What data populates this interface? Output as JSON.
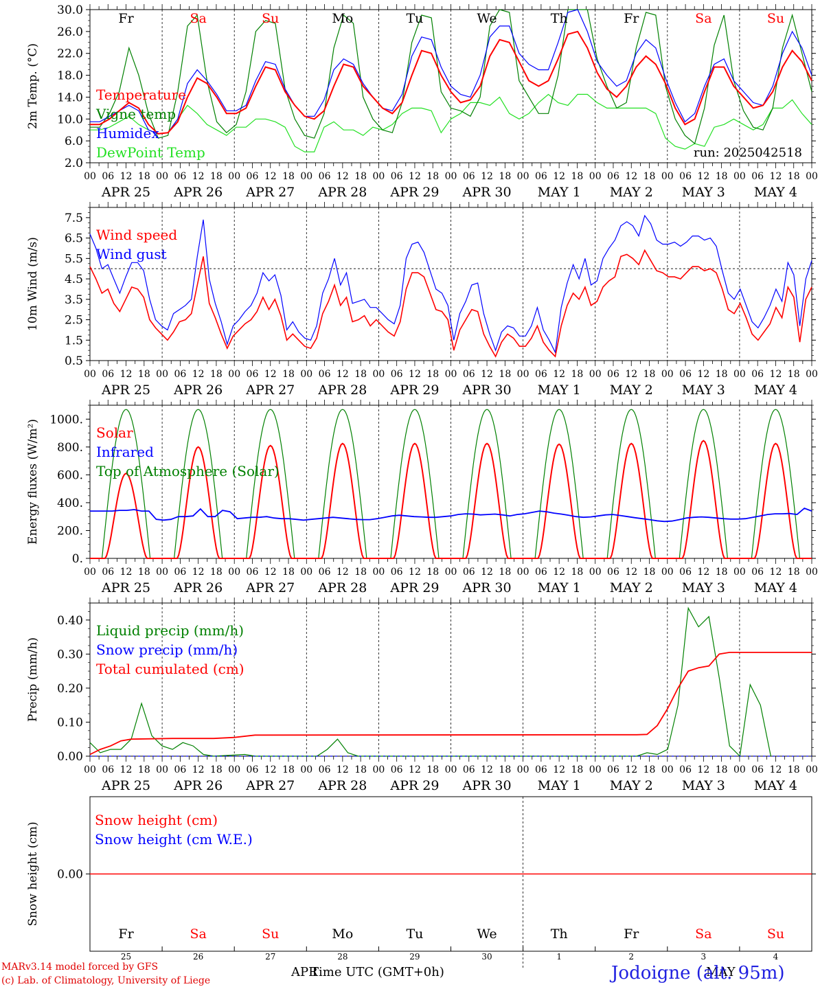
{
  "days": {
    "abbr": [
      "Fr",
      "Sa",
      "Su",
      "Mo",
      "Tu",
      "We",
      "Th",
      "Fr",
      "Sa",
      "Su"
    ],
    "weekend": [
      false,
      true,
      true,
      false,
      false,
      false,
      false,
      false,
      true,
      true
    ],
    "labels": [
      "APR 25",
      "APR 26",
      "APR 27",
      "APR 28",
      "APR 29",
      "APR 30",
      "MAY  1",
      "MAY  2",
      "MAY  3",
      "MAY  4"
    ],
    "daynums": [
      "25",
      "26",
      "27",
      "28",
      "29",
      "30",
      "1",
      "2",
      "3",
      "4"
    ],
    "hours": [
      "00",
      "06",
      "12",
      "18"
    ],
    "end_hour": "00"
  },
  "colors": {
    "red": "#ff0000",
    "green": "#008000",
    "blue": "#0000ff",
    "lightgreen": "#22e022",
    "axis": "#000000"
  },
  "footer": {
    "model": "MARv3.14 model forced by GFS",
    "lab": "(c) Lab. of Climatology, University of Liege",
    "apr": "APR",
    "may": "MAY",
    "xlabel": "Time UTC (GMT+0h)",
    "station": "Jodoigne (alt. 95m)"
  },
  "chart_data": [
    {
      "type": "line",
      "id": "temp",
      "ylabel": "2m Temp. (°C)",
      "ylim": [
        2,
        30
      ],
      "yticks": [
        2.0,
        6.0,
        10.0,
        14.0,
        18.0,
        22.0,
        26.0,
        30.0
      ],
      "ytick_labels": [
        "2.0",
        "6.0",
        "10.0",
        "14.0",
        "18.0",
        "22.0",
        "26.0",
        "30.0"
      ],
      "run_label": "run: 2025042518",
      "legend": [
        "Temperature",
        "Vigne temp",
        "Humidex",
        "DewPoint Temp"
      ],
      "x_hours_step": 6,
      "series": [
        {
          "name": "Temperature",
          "color": "red",
          "values": [
            9,
            9,
            10,
            11.5,
            13,
            12,
            9,
            7.3,
            7.5,
            9.5,
            14,
            17.5,
            16.5,
            14,
            11,
            11,
            12,
            16,
            19.5,
            19,
            15,
            12.5,
            10.5,
            10,
            11.5,
            16,
            20,
            19.5,
            16,
            14,
            12,
            11,
            13,
            18,
            22.5,
            22,
            18,
            15,
            13,
            13.5,
            16,
            21.5,
            24.5,
            24,
            20.5,
            17,
            16,
            17,
            21,
            25.5,
            26,
            23,
            18.5,
            15.5,
            14,
            16,
            19.5,
            21.5,
            20,
            16.5,
            12,
            9,
            10,
            15,
            19.5,
            19.5,
            16,
            14,
            12,
            12.5,
            15,
            19.5,
            22.5,
            20.5,
            17
          ]
        },
        {
          "name": "Vigne temp",
          "color": "green",
          "values": [
            8.5,
            8.5,
            11,
            15,
            23,
            18,
            11,
            6.5,
            7,
            15,
            27,
            29,
            17,
            9.5,
            7.5,
            9,
            15,
            26,
            28,
            27.5,
            15.5,
            10,
            7,
            6.5,
            11,
            23,
            29,
            27.5,
            14,
            10,
            8,
            7.5,
            13,
            24,
            29,
            28.5,
            15,
            12,
            11.5,
            10.5,
            14,
            27,
            30,
            29.5,
            17,
            14,
            11,
            11,
            18,
            30,
            30,
            30,
            21,
            16,
            12,
            13,
            23,
            29.5,
            29,
            16,
            10,
            7,
            5.5,
            12,
            23.5,
            29,
            17,
            11.5,
            8.5,
            8,
            12,
            23,
            29,
            22,
            15
          ]
        },
        {
          "name": "Humidex",
          "color": "blue",
          "values": [
            9.5,
            9.5,
            10.5,
            11.5,
            12.5,
            11.5,
            8,
            7.3,
            7.5,
            10,
            16.5,
            19,
            17,
            14.5,
            11.5,
            11.5,
            12.5,
            17,
            20.5,
            20,
            15.5,
            12.5,
            10.5,
            10.5,
            13.5,
            19,
            21,
            20,
            16.5,
            14,
            12,
            11.5,
            14.5,
            21.5,
            25,
            24.5,
            19.5,
            16,
            14.5,
            14,
            18,
            25,
            27,
            27,
            22,
            20,
            19,
            19,
            24,
            29.5,
            30,
            26,
            20.5,
            18,
            16,
            17,
            22,
            24.5,
            23,
            17.5,
            13,
            9.5,
            11,
            16,
            20,
            21,
            17,
            15,
            13,
            12.5,
            16,
            22,
            26,
            23,
            18
          ]
        },
        {
          "name": "DewPoint Temp",
          "color": "lightgreen",
          "values": [
            8,
            8,
            8.5,
            9.5,
            10.5,
            9,
            8,
            7.3,
            7.5,
            10,
            12.5,
            11,
            9,
            8,
            7,
            8.5,
            8.5,
            10,
            10,
            9.5,
            8.5,
            5,
            4,
            4,
            8.5,
            9.5,
            8,
            8,
            7,
            8.5,
            8,
            9,
            11,
            12,
            12,
            11.5,
            7.5,
            10,
            11,
            13,
            13,
            12.5,
            14,
            11,
            10,
            11,
            13,
            14.5,
            13,
            12.5,
            14.5,
            14.5,
            13,
            12,
            12,
            12,
            12,
            12,
            11,
            6.5,
            5,
            4.5,
            5.5,
            5,
            8.5,
            9,
            10,
            9,
            8,
            9,
            12,
            12,
            13.5,
            11,
            9
          ]
        }
      ]
    },
    {
      "type": "line",
      "id": "wind",
      "ylabel": "10m Wind (m/s)",
      "ylim": [
        0.5,
        8
      ],
      "yticks": [
        0.5,
        1.5,
        2.5,
        3.5,
        4.5,
        5.5,
        6.5,
        7.5
      ],
      "ytick_labels": [
        "0.5",
        "1.5",
        "2.5",
        "3.5",
        "4.5",
        "5.5",
        "6.5",
        "7.5"
      ],
      "hline": 5,
      "legend": [
        "Wind speed",
        "Wind gust"
      ],
      "x_hours_step": 3,
      "series": [
        {
          "name": "Wind speed",
          "color": "red",
          "values": [
            5.1,
            4.5,
            3.8,
            4,
            3.3,
            2.9,
            3.5,
            4.1,
            4,
            3.6,
            2.5,
            2.1,
            1.8,
            1.5,
            1.9,
            2.4,
            2.5,
            2.8,
            4.2,
            5.6,
            3.3,
            2.6,
            1.8,
            1.1,
            1.7,
            2,
            2.3,
            2.5,
            2.9,
            3.6,
            3,
            3.5,
            2.7,
            1.5,
            1.8,
            1.5,
            1.2,
            1.1,
            1.6,
            2.8,
            3.4,
            4.2,
            3.2,
            3.6,
            2.4,
            2.5,
            2.7,
            2.2,
            2.5,
            2.2,
            1.9,
            1.7,
            2.4,
            4,
            4.8,
            4.8,
            4.6,
            3.8,
            3,
            2.9,
            2.5,
            1,
            2,
            2.5,
            3,
            2.9,
            1.8,
            1.2,
            0.7,
            1.4,
            1.8,
            1.6,
            1.2,
            1.2,
            1.6,
            2.2,
            1.4,
            1,
            0.7,
            2.2,
            3.2,
            3.8,
            3.5,
            4.1,
            3.2,
            3.4,
            4.1,
            4.4,
            4.6,
            5.6,
            5.7,
            5.5,
            5.2,
            5.9,
            5.4,
            4.9,
            4.8,
            4.6,
            4.6,
            4.5,
            4.8,
            5.1,
            5.1,
            4.9,
            5,
            4.8,
            4,
            3,
            2.8,
            3.3,
            2.6,
            1.8,
            1.5,
            1.9,
            2.3,
            3.1,
            2.6,
            4.1,
            3.6,
            1.4,
            3.5,
            4.1
          ]
        },
        {
          "name": "Wind gust",
          "color": "blue",
          "values": [
            6.7,
            6,
            5,
            5.2,
            4.5,
            3.8,
            4.6,
            5.3,
            5.3,
            4.9,
            3.5,
            2.5,
            2.2,
            2,
            2.8,
            3,
            3.2,
            3.5,
            5.6,
            7.4,
            4.5,
            3.3,
            2.4,
            1.3,
            2.2,
            2.5,
            2.9,
            3.2,
            3.8,
            4.8,
            4.4,
            4.7,
            3.7,
            2,
            2.4,
            1.9,
            1.6,
            1.5,
            2.2,
            3.8,
            4.5,
            5.5,
            4.2,
            4.8,
            3.3,
            3.4,
            3.5,
            3.1,
            3.1,
            2.8,
            2.5,
            2.3,
            3.2,
            5.5,
            6.2,
            6.3,
            5.8,
            4.9,
            4,
            3.8,
            3.2,
            1.5,
            2.8,
            3.4,
            4.2,
            4.3,
            2.8,
            1.8,
            1,
            1.9,
            2.2,
            2.1,
            1.7,
            1.7,
            2.2,
            3.1,
            2,
            1.5,
            0.9,
            3.1,
            4.3,
            5.2,
            4.5,
            5.5,
            4.2,
            4.4,
            5.5,
            6,
            6.4,
            7.1,
            7.3,
            7.1,
            6.6,
            7.6,
            7.2,
            6.4,
            6.2,
            6.2,
            6.3,
            6.1,
            6.3,
            6.6,
            6.6,
            6.4,
            6.5,
            6.1,
            4.9,
            3.8,
            3.5,
            4,
            3.2,
            2.4,
            2.1,
            2.6,
            3.2,
            4,
            3.4,
            5.3,
            4.7,
            2.2,
            4.5,
            5.4
          ]
        }
      ]
    },
    {
      "type": "line",
      "id": "energy",
      "ylabel": "Energy fluxes (W/m²)",
      "ylim": [
        0,
        1100
      ],
      "yticks": [
        0,
        200,
        400,
        600,
        800,
        1000
      ],
      "ytick_labels": [
        "0.",
        "200.",
        "400.",
        "600.",
        "800.",
        "1000."
      ],
      "legend": [
        "Solar",
        "Infrared",
        "Top of Atmosphere (Solar)"
      ],
      "x_hours_step": 3,
      "solar_peaks": [
        610,
        800,
        810,
        825,
        825,
        825,
        820,
        825,
        845,
        825
      ],
      "toa_peak": 1070,
      "infrared": [
        340,
        340,
        340,
        340,
        345,
        345,
        350,
        340,
        340,
        280,
        275,
        280,
        300,
        300,
        305,
        355,
        300,
        300,
        345,
        335,
        285,
        290,
        295,
        295,
        300,
        290,
        285,
        285,
        280,
        275,
        280,
        285,
        290,
        295,
        290,
        285,
        280,
        278,
        278,
        285,
        295,
        305,
        310,
        305,
        300,
        298,
        295,
        295,
        300,
        305,
        315,
        320,
        318,
        312,
        315,
        318,
        312,
        305,
        315,
        320,
        330,
        340,
        335,
        325,
        318,
        310,
        300,
        295,
        298,
        305,
        312,
        315,
        308,
        300,
        292,
        285,
        278,
        270,
        265,
        268,
        278,
        290,
        295,
        298,
        295,
        290,
        285,
        282,
        282,
        285,
        295,
        305,
        315,
        320,
        320,
        322,
        315,
        360,
        340
      ]
    },
    {
      "type": "line",
      "id": "precip",
      "ylabel": "Precip (mm/h)",
      "ylim": [
        0,
        0.45
      ],
      "yticks": [
        0,
        0.1,
        0.2,
        0.3,
        0.4
      ],
      "ytick_labels": [
        "0.00",
        "0.10",
        "0.20",
        "0.30",
        "0.40"
      ],
      "legend": [
        "Liquid precip (mm/h)",
        "Snow precip (mm/h)",
        "Total cumulated (cm)"
      ],
      "liquid": [
        [
          0,
          0.04
        ],
        [
          1,
          0.01
        ],
        [
          2,
          0.02
        ],
        [
          3,
          0.02
        ],
        [
          4,
          0.05
        ],
        [
          5,
          0.155
        ],
        [
          6,
          0.06
        ],
        [
          7,
          0.03
        ],
        [
          8,
          0.02
        ],
        [
          9,
          0.04
        ],
        [
          10,
          0.03
        ],
        [
          11,
          0.005
        ],
        [
          12,
          0
        ],
        [
          15,
          0.005
        ],
        [
          16,
          0
        ],
        [
          22,
          0
        ],
        [
          23,
          0.02
        ],
        [
          24,
          0.05
        ],
        [
          25,
          0.01
        ],
        [
          26,
          0
        ],
        [
          53,
          0
        ],
        [
          54,
          0.01
        ],
        [
          55,
          0.005
        ],
        [
          56,
          0.02
        ],
        [
          57,
          0.15
        ],
        [
          58,
          0.435
        ],
        [
          59,
          0.38
        ],
        [
          60,
          0.41
        ],
        [
          61,
          0.23
        ],
        [
          62,
          0.03
        ],
        [
          63,
          0
        ],
        [
          64,
          0.21
        ],
        [
          65,
          0.15
        ],
        [
          66,
          0
        ]
      ],
      "total": [
        [
          0,
          0.005
        ],
        [
          1,
          0.02
        ],
        [
          2,
          0.03
        ],
        [
          3,
          0.045
        ],
        [
          4,
          0.05
        ],
        [
          8,
          0.052
        ],
        [
          12,
          0.052
        ],
        [
          14,
          0.055
        ],
        [
          16,
          0.062
        ],
        [
          53,
          0.063
        ],
        [
          54,
          0.064
        ],
        [
          55,
          0.09
        ],
        [
          56,
          0.14
        ],
        [
          57,
          0.2
        ],
        [
          58,
          0.25
        ],
        [
          59,
          0.26
        ],
        [
          60,
          0.265
        ],
        [
          61,
          0.3
        ],
        [
          62,
          0.305
        ],
        [
          70,
          0.305
        ]
      ],
      "x_hours_step": 3.5
    },
    {
      "type": "line",
      "id": "snow",
      "ylabel": "Snow height (cm)",
      "ylim": [
        -1,
        1
      ],
      "yticks": [
        0
      ],
      "ytick_labels": [
        "0.00"
      ],
      "legend": [
        "Snow height (cm)",
        "Snow height (cm W.E.)"
      ],
      "series": [
        {
          "name": "Snow height (cm)",
          "color": "red",
          "values": [
            0,
            0
          ]
        }
      ]
    }
  ]
}
